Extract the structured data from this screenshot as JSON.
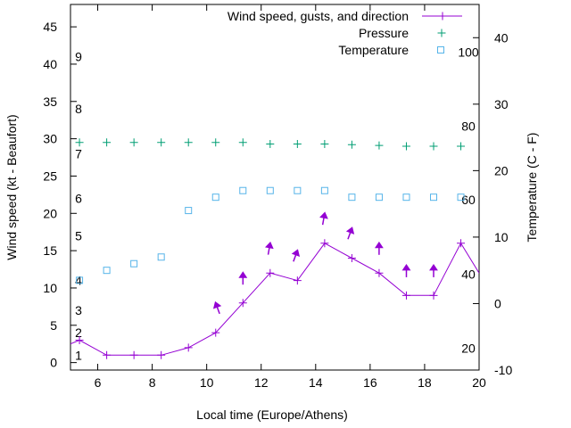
{
  "chart_data": {
    "type": "line",
    "title": "",
    "xlabel": "Local time (Europe/Athens)",
    "ylabel": "Wind speed (kt - Beaufort)",
    "y2label": "Temperature (C - F)",
    "xlim": [
      5,
      20
    ],
    "ylim": [
      -1,
      48
    ],
    "y2lim": [
      -10,
      45
    ],
    "xticks": [
      6,
      8,
      10,
      12,
      14,
      16,
      18,
      20
    ],
    "yticks": [
      0,
      5,
      10,
      15,
      20,
      25,
      30,
      35,
      40,
      45
    ],
    "y2ticks": [
      -10,
      0,
      10,
      20,
      30,
      40
    ],
    "beaufort_labels": [
      {
        "label": "1",
        "y": 1
      },
      {
        "label": "2",
        "y": 4
      },
      {
        "label": "3",
        "y": 7
      },
      {
        "label": "4",
        "y": 11
      },
      {
        "label": "5",
        "y": 17
      },
      {
        "label": "6",
        "y": 22
      },
      {
        "label": "7",
        "y": 28
      },
      {
        "label": "8",
        "y": 34
      },
      {
        "label": "9",
        "y": 41
      }
    ],
    "fahrenheit_labels": [
      {
        "label": "20",
        "y2": -6.7
      },
      {
        "label": "40",
        "y2": 4.4
      },
      {
        "label": "60",
        "y2": 15.6
      },
      {
        "label": "80",
        "y2": 26.7
      },
      {
        "label": "100",
        "y2": 37.8
      }
    ],
    "legend": [
      {
        "label": "Wind speed, gusts, and direction",
        "color": "#9400d3",
        "marker": "line-plus"
      },
      {
        "label": "Pressure",
        "color": "#009e73",
        "marker": "plus"
      },
      {
        "label": "Temperature",
        "color": "#56b4e9",
        "marker": "square"
      }
    ],
    "series": [
      {
        "name": "Wind speed, gusts, and direction",
        "color": "#9400d3",
        "x": [
          5.0,
          5.33,
          6.33,
          7.33,
          8.33,
          9.33,
          10.33,
          11.33,
          12.33,
          13.33,
          14.33,
          15.33,
          16.33,
          17.33,
          18.33,
          19.33,
          20.0
        ],
        "y": [
          2.5,
          3,
          1,
          1,
          1,
          2,
          4,
          8,
          12,
          11,
          16,
          14,
          12,
          9,
          9,
          16,
          12
        ]
      },
      {
        "name": "Gusts",
        "color": "#9400d3",
        "x": [
          10.33,
          11.33,
          12.33,
          13.33,
          14.33,
          15.33,
          16.33,
          17.33,
          18.33
        ],
        "y": [
          8,
          12,
          16,
          15,
          20,
          18,
          16,
          13,
          13
        ],
        "direction_deg": [
          160,
          180,
          190,
          200,
          190,
          200,
          180,
          180,
          180
        ]
      },
      {
        "name": "Pressure",
        "color": "#009e73",
        "x": [
          5.33,
          6.33,
          7.33,
          8.33,
          9.33,
          10.33,
          11.33,
          12.33,
          13.33,
          14.33,
          15.33,
          16.33,
          17.33,
          18.33,
          19.33
        ],
        "y": [
          29.5,
          29.5,
          29.5,
          29.5,
          29.5,
          29.5,
          29.5,
          29.3,
          29.3,
          29.3,
          29.2,
          29.1,
          29.0,
          29.0,
          29.0
        ]
      },
      {
        "name": "Temperature",
        "color": "#56b4e9",
        "axis": "y2",
        "x": [
          5.33,
          6.33,
          7.33,
          8.33,
          9.33,
          10.33,
          11.33,
          12.33,
          13.33,
          14.33,
          15.33,
          16.33,
          17.33,
          18.33,
          19.33
        ],
        "y": [
          3.5,
          5,
          6,
          7,
          14,
          16,
          17,
          17,
          17,
          17,
          16,
          16,
          16,
          16,
          16
        ]
      }
    ]
  }
}
